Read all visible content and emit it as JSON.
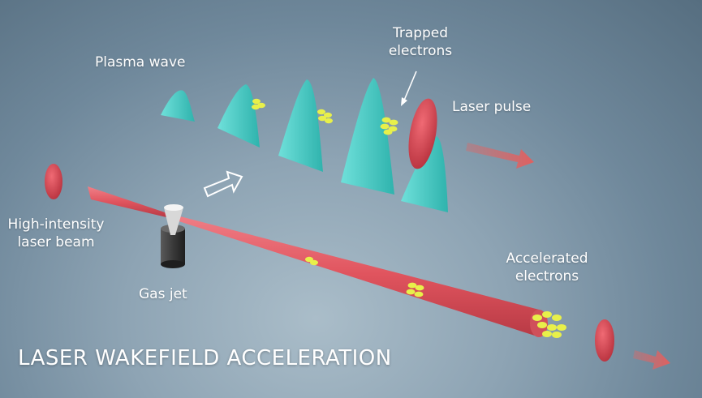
{
  "title": "LASER WAKEFIELD ACCELERATION",
  "labels": {
    "plasma_wave": "Plasma wave",
    "trapped_electrons": [
      "Trapped",
      "electrons"
    ],
    "laser_pulse": "Laser pulse",
    "high_intensity": [
      "High-intensity",
      "laser beam"
    ],
    "gas_jet": "Gas jet",
    "accelerated_electrons": [
      "Accelerated",
      "electrons"
    ]
  },
  "colors": {
    "laser": "#e0545e",
    "plasma_wave": "#3fcbc4",
    "electrons": "#e8f04a",
    "text": "#ffffff"
  }
}
